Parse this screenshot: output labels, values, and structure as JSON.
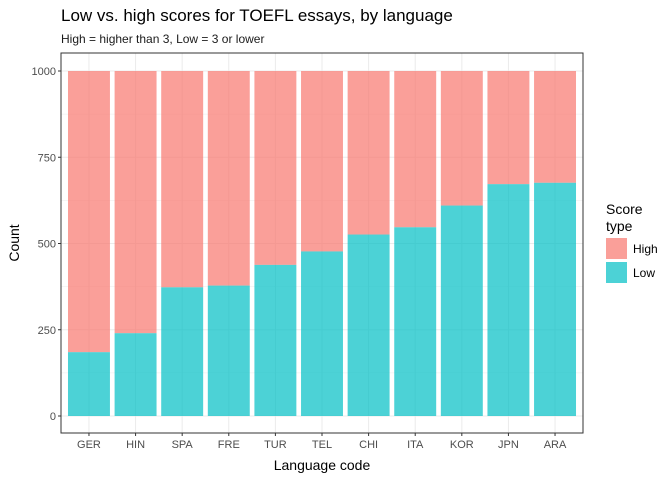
{
  "chart_data": {
    "type": "bar",
    "stacked": true,
    "title": "Low vs. high scores for TOEFL essays, by language",
    "subtitle": "High = higher than 3, Low = 3 or lower",
    "xlabel": "Language code",
    "ylabel": "Count",
    "ylim": [
      0,
      1000
    ],
    "yticks": [
      0,
      250,
      500,
      750,
      1000
    ],
    "grid": true,
    "legend_position": "right",
    "legend_title": "Score type",
    "categories": [
      "GER",
      "HIN",
      "SPA",
      "FRE",
      "TUR",
      "TEL",
      "CHI",
      "ITA",
      "KOR",
      "JPN",
      "ARA"
    ],
    "series": [
      {
        "name": "High",
        "color": "#F8766D",
        "values": [
          815,
          760,
          627,
          622,
          562,
          523,
          474,
          453,
          390,
          328,
          324
        ]
      },
      {
        "name": "Low",
        "color": "#00BFC4",
        "values": [
          185,
          240,
          373,
          378,
          438,
          477,
          526,
          547,
          610,
          672,
          676
        ]
      }
    ]
  }
}
